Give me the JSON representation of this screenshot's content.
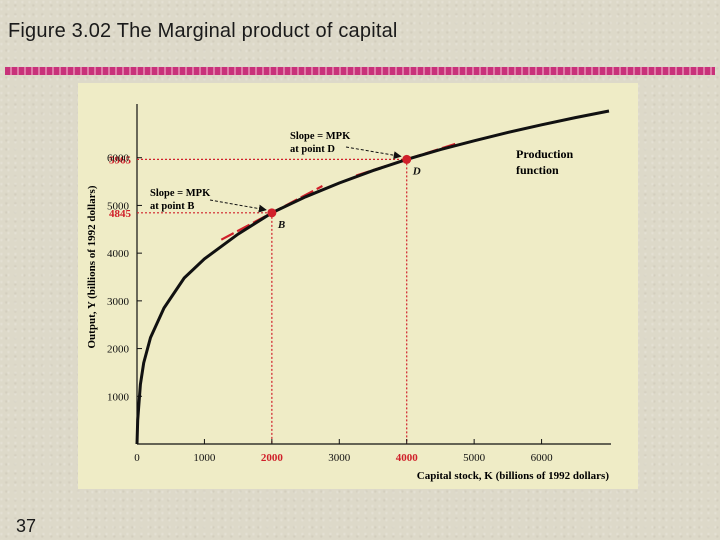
{
  "slide": {
    "title": "Figure 3.02  The Marginal product of capital",
    "number": "37"
  },
  "chart_data": {
    "type": "line",
    "xlabel": "Capital stock, K (billions of 1992 dollars)",
    "ylabel": "Output, Y (billions of 1992 dollars)",
    "xlim": [
      0,
      7000
    ],
    "ylim": [
      0,
      7000
    ],
    "x_ticks": [
      0,
      1000,
      2000,
      3000,
      4000,
      5000,
      6000
    ],
    "y_ticks": [
      1000,
      2000,
      3000,
      4000,
      5000,
      6000
    ],
    "x_tick_labels": [
      "0",
      "1000",
      "2000",
      "3000",
      "4000",
      "5000",
      "6000"
    ],
    "y_tick_labels": [
      "1000",
      "2000",
      "3000",
      "4000",
      "5000",
      "6000"
    ],
    "series": [
      {
        "name": "Production function",
        "x": [
          0,
          10,
          50,
          100,
          200,
          400,
          700,
          1000,
          1500,
          2000,
          2500,
          3000,
          3500,
          4000,
          4500,
          5000,
          5500,
          6000,
          6500,
          7000
        ],
        "y": [
          0,
          500,
          1250,
          1700,
          2230,
          2850,
          3480,
          3880,
          4400,
          4845,
          5180,
          5470,
          5730,
          5965,
          6170,
          6355,
          6530,
          6690,
          6840,
          6980
        ]
      }
    ],
    "points": [
      {
        "label": "B",
        "x": 2000,
        "y": 4845,
        "slope_label": "Slope = MPK at point B",
        "x_label": "2000",
        "y_label": "4845",
        "tangent_slope": 0.75
      },
      {
        "label": "D",
        "x": 4000,
        "y": 5965,
        "slope_label": "Slope = MPK at point D",
        "x_label": "4000",
        "y_label": "5965",
        "tangent_slope": 0.45
      }
    ],
    "annotations": {
      "curve_label_line1": "Production",
      "curve_label_line2": "function",
      "slope_b_line1": "Slope = MPK",
      "slope_b_line2": "at point B",
      "slope_d_line1": "Slope = MPK",
      "slope_d_line2": "at point D"
    },
    "colors": {
      "curve": "#111111",
      "highlight": "#d0202a",
      "axis": "#111111"
    },
    "grid": false
  }
}
